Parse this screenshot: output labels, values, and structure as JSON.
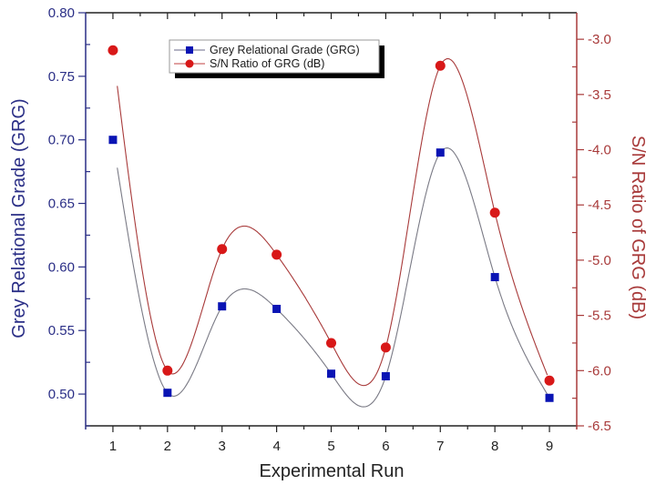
{
  "chart_data": {
    "type": "line",
    "title": "",
    "xlabel": "Experimental Run",
    "ylabel": "Grey Relational Grade (GRG)",
    "y2label": "S/N Ratio of GRG (dB)",
    "x": [
      1,
      2,
      3,
      4,
      5,
      6,
      7,
      8,
      9
    ],
    "x_ticks": [
      "1",
      "2",
      "3",
      "4",
      "5",
      "6",
      "7",
      "8",
      "9"
    ],
    "xlim": [
      0.5,
      9.5
    ],
    "ylim": [
      0.475,
      0.8
    ],
    "y_ticks": [
      "0.50",
      "0.55",
      "0.60",
      "0.65",
      "0.70",
      "0.75",
      "0.80"
    ],
    "y2lim": [
      -6.5,
      -2.76
    ],
    "y2_ticks": [
      "-3.0",
      "-3.5",
      "-4.0",
      "-4.5",
      "-5.0",
      "-5.5",
      "-6.0",
      "-6.5"
    ],
    "grid": false,
    "legend_position": "upper-center",
    "series": [
      {
        "name": "Grey Relational Grade (GRG)",
        "axis": "left",
        "marker": "square",
        "color": "#0a14b4",
        "line_color": "#7a7a85",
        "values": [
          0.7,
          0.501,
          0.569,
          0.567,
          0.516,
          0.514,
          0.69,
          0.592,
          0.497
        ]
      },
      {
        "name": "S/N Ratio of GRG (dB)",
        "axis": "right",
        "marker": "circle",
        "color": "#d81818",
        "line_color": "#a83a3a",
        "values": [
          -3.1,
          -6.0,
          -4.9,
          -4.95,
          -5.75,
          -5.79,
          -3.24,
          -4.57,
          -6.09
        ]
      }
    ]
  },
  "colors": {
    "left_axis": "#2a2e86",
    "right_axis": "#a83a3a",
    "frame": "#222222"
  }
}
